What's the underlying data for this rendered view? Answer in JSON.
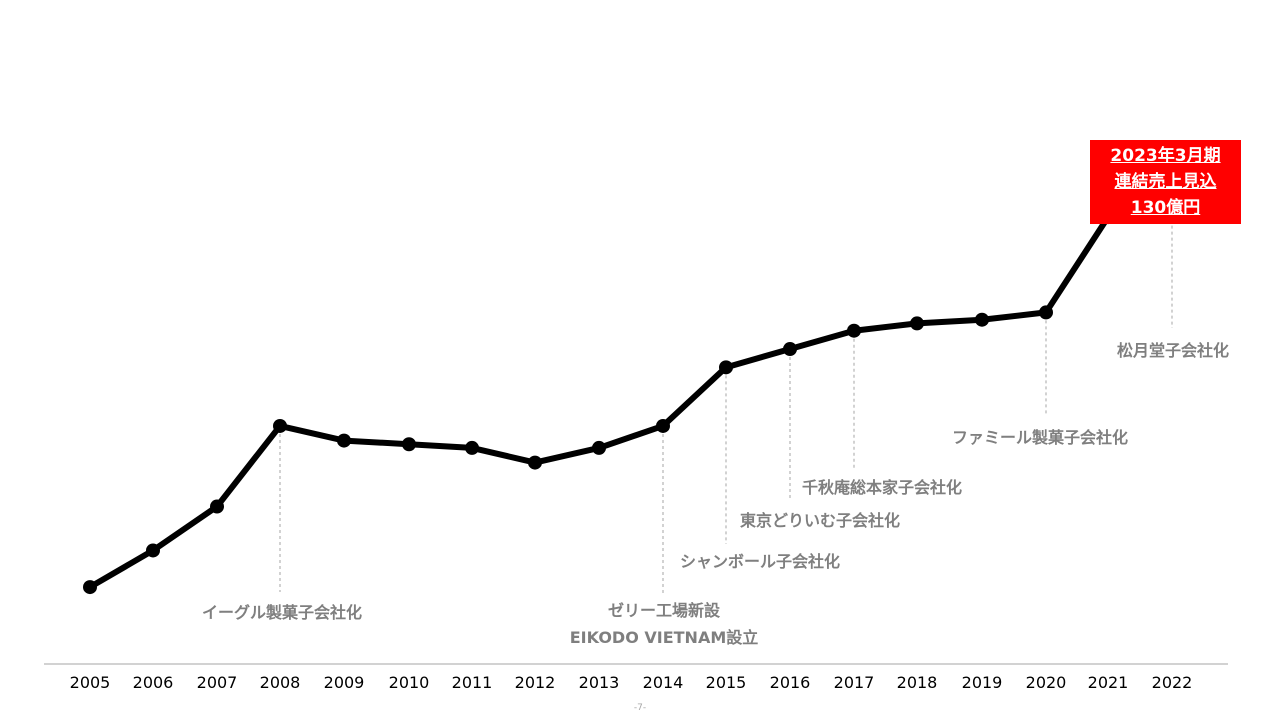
{
  "chart_data": {
    "type": "line",
    "title": "",
    "xlabel": "",
    "ylabel": "",
    "x": [
      "2005",
      "2006",
      "2007",
      "2008",
      "2009",
      "2010",
      "2011",
      "2012",
      "2013",
      "2014",
      "2015",
      "2016",
      "2017",
      "2018",
      "2019",
      "2020",
      "2021",
      "2022"
    ],
    "values": [
      21,
      31,
      43,
      65,
      61,
      60,
      59,
      55,
      59,
      65,
      81,
      86,
      91,
      93,
      94,
      96,
      122,
      135
    ],
    "value_note_axis": "none",
    "ylim": [
      0,
      160
    ],
    "grid": false,
    "line_color": "#000000",
    "annotations": [
      {
        "x": "2008",
        "lines": [
          "イーグル製菓子会社化"
        ]
      },
      {
        "x": "2014",
        "lines": [
          "ゼリー工場新設",
          "EIKODO VIETNAM設立"
        ]
      },
      {
        "x": "2015",
        "lines": [
          "シャンボール子会社化"
        ]
      },
      {
        "x": "2016",
        "lines": [
          "東京どりいむ子会社化"
        ]
      },
      {
        "x": "2017",
        "lines": [
          "千秋庵総本家子会社化"
        ]
      },
      {
        "x": "2020",
        "lines": [
          "ファミール製菓子会社化"
        ]
      },
      {
        "x": "2022",
        "lines": [
          "松月堂子会社化"
        ]
      }
    ],
    "callout": {
      "x": "2022",
      "lines": [
        "2023年3月期",
        "連結売上見込",
        "130億円"
      ],
      "background": "#ff0000",
      "text_color": "#ffffff"
    },
    "annotation_text_color": "#7f7f7f"
  },
  "page_number": "-7-"
}
